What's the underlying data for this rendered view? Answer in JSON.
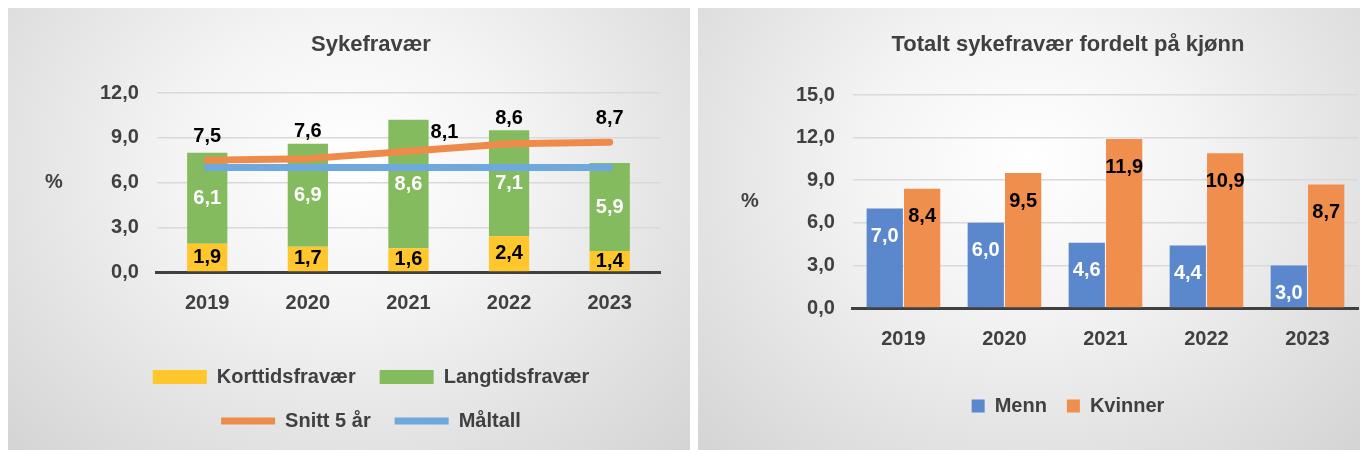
{
  "chart_data": [
    {
      "type": "bar",
      "title": "Sykefravær",
      "ylabel": "%",
      "categories": [
        "2019",
        "2020",
        "2021",
        "2022",
        "2023"
      ],
      "stacked": true,
      "series": [
        {
          "name": "Korttidsfravær",
          "color": "#ffc72c",
          "values": [
            1.9,
            1.7,
            1.6,
            2.4,
            1.4
          ],
          "value_labels": [
            "1,9",
            "1,7",
            "1,6",
            "2,4",
            "1,4"
          ]
        },
        {
          "name": "Langtidsfravær",
          "color": "#84bb5f",
          "values": [
            6.1,
            6.9,
            8.6,
            7.1,
            5.9
          ],
          "value_labels": [
            "6,1",
            "6,9",
            "8,6",
            "7,1",
            "5,9"
          ]
        },
        {
          "name": "Snitt 5 år",
          "type": "line",
          "color": "#ef8b4a",
          "values": [
            7.5,
            7.6,
            8.1,
            8.6,
            8.7
          ],
          "value_labels": [
            "7,5",
            "7,6",
            "8,1",
            "8,6",
            "8,7"
          ]
        },
        {
          "name": "Måltall",
          "type": "line",
          "color": "#6fa8dc",
          "values": [
            7.0,
            7.0,
            7.0,
            7.0,
            7.0
          ]
        }
      ],
      "ylim": [
        0,
        12
      ],
      "yticks": [
        {
          "value": 0,
          "label": "0,0"
        },
        {
          "value": 3,
          "label": "3,0"
        },
        {
          "value": 6,
          "label": "6,0"
        },
        {
          "value": 9,
          "label": "9,0"
        },
        {
          "value": 12,
          "label": "12,0"
        }
      ],
      "grid": "y",
      "legend": "bottom"
    },
    {
      "type": "bar",
      "title": "Totalt sykefravær fordelt på kjønn",
      "ylabel": "%",
      "categories": [
        "2019",
        "2020",
        "2021",
        "2022",
        "2023"
      ],
      "series": [
        {
          "name": "Menn",
          "color": "#5b87cd",
          "values": [
            7.0,
            6.0,
            4.6,
            4.4,
            3.0
          ],
          "value_labels": [
            "7,0",
            "6,0",
            "4,6",
            "4,4",
            "3,0"
          ]
        },
        {
          "name": "Kvinner",
          "color": "#f08e4d",
          "values": [
            8.4,
            9.5,
            11.9,
            10.9,
            8.7
          ],
          "value_labels": [
            "8,4",
            "9,5",
            "11,9",
            "10,9",
            "8,7"
          ]
        }
      ],
      "ylim": [
        0,
        15
      ],
      "yticks": [
        {
          "value": 0,
          "label": "0,0"
        },
        {
          "value": 3,
          "label": "3,0"
        },
        {
          "value": 6,
          "label": "6,0"
        },
        {
          "value": 9,
          "label": "9,0"
        },
        {
          "value": 12,
          "label": "12,0"
        },
        {
          "value": 15,
          "label": "15,0"
        }
      ],
      "grid": "y",
      "legend": "bottom"
    }
  ]
}
